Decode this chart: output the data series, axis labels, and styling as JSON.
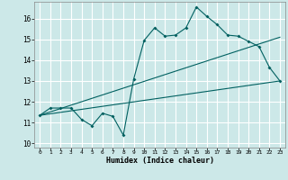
{
  "xlabel": "Humidex (Indice chaleur)",
  "bg_color": "#cce8e8",
  "grid_color": "#ffffff",
  "line_color": "#006060",
  "x_ticks": [
    0,
    1,
    2,
    3,
    4,
    5,
    6,
    7,
    8,
    9,
    10,
    11,
    12,
    13,
    14,
    15,
    16,
    17,
    18,
    19,
    20,
    21,
    22,
    23
  ],
  "y_ticks": [
    10,
    11,
    12,
    13,
    14,
    15,
    16
  ],
  "xlim": [
    -0.5,
    23.5
  ],
  "ylim": [
    9.8,
    16.8
  ],
  "line1_x": [
    0,
    1,
    2,
    3,
    4,
    5,
    6,
    7,
    8,
    9,
    10,
    11,
    12,
    13,
    14,
    15,
    16,
    17,
    18,
    19,
    20,
    21,
    22,
    23
  ],
  "line1_y": [
    11.35,
    11.7,
    11.7,
    11.7,
    11.15,
    10.85,
    11.45,
    11.3,
    10.4,
    13.1,
    14.95,
    15.55,
    15.15,
    15.2,
    15.55,
    16.55,
    16.1,
    15.7,
    15.2,
    15.15,
    14.9,
    14.65,
    13.65,
    13.0
  ],
  "line2_x": [
    0,
    23
  ],
  "line2_y": [
    11.35,
    15.1
  ],
  "line3_x": [
    0,
    23
  ],
  "line3_y": [
    11.35,
    13.0
  ]
}
